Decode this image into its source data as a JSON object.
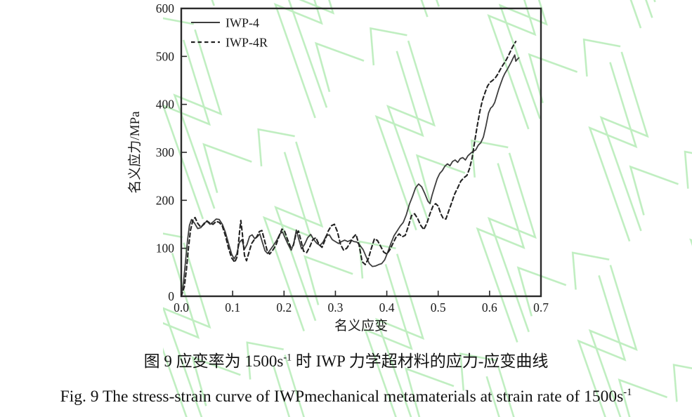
{
  "figure": {
    "caption_zh_prefix": "图 9 应变率为 1500s",
    "caption_zh_sup": "-1",
    "caption_zh_suffix": " 时 IWP 力学超材料的应力-应变曲线",
    "caption_en_prefix": "Fig. 9 The stress-strain curve of IWPmechanical metamaterials at strain rate of 1500s",
    "caption_en_sup": "-1"
  },
  "colors": {
    "background": "#ffffff",
    "axis": "#2a2a2a",
    "curve_solid": "#3d3d3d",
    "curve_dashed": "#222222",
    "text": "#1a1a1a",
    "watermark": "#bfeec0"
  },
  "chart_data": {
    "type": "line",
    "title": "",
    "xlabel": "名义应变",
    "ylabel": "名义应力/MPa",
    "xlim": [
      0.0,
      0.7
    ],
    "ylim": [
      0,
      600
    ],
    "xtick_values": [
      0.0,
      0.1,
      0.2,
      0.3,
      0.4,
      0.5,
      0.6,
      0.7
    ],
    "xtick_labels": [
      "0.0",
      "0.1",
      "0.2",
      "0.3",
      "0.4",
      "0.5",
      "0.6",
      "0.7"
    ],
    "ytick_values": [
      0,
      100,
      200,
      300,
      400,
      500,
      600
    ],
    "ytick_labels": [
      "0",
      "100",
      "200",
      "300",
      "400",
      "500",
      "600"
    ],
    "grid": false,
    "legend_position": "top-left",
    "series": [
      {
        "name": "IWP-4",
        "style": "solid",
        "points": [
          [
            0.0,
            0
          ],
          [
            0.004,
            25
          ],
          [
            0.008,
            70
          ],
          [
            0.012,
            115
          ],
          [
            0.016,
            148
          ],
          [
            0.02,
            160
          ],
          [
            0.026,
            152
          ],
          [
            0.032,
            141
          ],
          [
            0.038,
            143
          ],
          [
            0.044,
            152
          ],
          [
            0.05,
            156
          ],
          [
            0.056,
            150
          ],
          [
            0.062,
            155
          ],
          [
            0.068,
            161
          ],
          [
            0.074,
            160
          ],
          [
            0.08,
            150
          ],
          [
            0.086,
            133
          ],
          [
            0.092,
            110
          ],
          [
            0.098,
            88
          ],
          [
            0.103,
            78
          ],
          [
            0.108,
            88
          ],
          [
            0.113,
            112
          ],
          [
            0.118,
            118
          ],
          [
            0.123,
            98
          ],
          [
            0.128,
            108
          ],
          [
            0.133,
            125
          ],
          [
            0.138,
            128
          ],
          [
            0.143,
            120
          ],
          [
            0.148,
            124
          ],
          [
            0.153,
            130
          ],
          [
            0.158,
            112
          ],
          [
            0.163,
            95
          ],
          [
            0.168,
            89
          ],
          [
            0.174,
            98
          ],
          [
            0.18,
            107
          ],
          [
            0.186,
            117
          ],
          [
            0.192,
            130
          ],
          [
            0.197,
            134
          ],
          [
            0.202,
            122
          ],
          [
            0.208,
            108
          ],
          [
            0.214,
            96
          ],
          [
            0.219,
            110
          ],
          [
            0.224,
            138
          ],
          [
            0.229,
            118
          ],
          [
            0.234,
            99
          ],
          [
            0.24,
            108
          ],
          [
            0.246,
            122
          ],
          [
            0.252,
            129
          ],
          [
            0.258,
            118
          ],
          [
            0.264,
            110
          ],
          [
            0.27,
            106
          ],
          [
            0.276,
            113
          ],
          [
            0.282,
            126
          ],
          [
            0.288,
            128
          ],
          [
            0.294,
            118
          ],
          [
            0.3,
            114
          ],
          [
            0.306,
            110
          ],
          [
            0.312,
            114
          ],
          [
            0.318,
            117
          ],
          [
            0.324,
            114
          ],
          [
            0.33,
            117
          ],
          [
            0.336,
            114
          ],
          [
            0.342,
            113
          ],
          [
            0.348,
            106
          ],
          [
            0.354,
            97
          ],
          [
            0.36,
            82
          ],
          [
            0.366,
            68
          ],
          [
            0.372,
            62
          ],
          [
            0.378,
            63
          ],
          [
            0.384,
            66
          ],
          [
            0.39,
            68
          ],
          [
            0.396,
            76
          ],
          [
            0.402,
            92
          ],
          [
            0.408,
            110
          ],
          [
            0.414,
            126
          ],
          [
            0.42,
            136
          ],
          [
            0.426,
            146
          ],
          [
            0.432,
            154
          ],
          [
            0.438,
            170
          ],
          [
            0.444,
            192
          ],
          [
            0.45,
            208
          ],
          [
            0.456,
            226
          ],
          [
            0.462,
            234
          ],
          [
            0.468,
            228
          ],
          [
            0.474,
            214
          ],
          [
            0.48,
            198
          ],
          [
            0.484,
            193
          ],
          [
            0.488,
            210
          ],
          [
            0.493,
            228
          ],
          [
            0.498,
            245
          ],
          [
            0.503,
            256
          ],
          [
            0.508,
            262
          ],
          [
            0.513,
            271
          ],
          [
            0.518,
            276
          ],
          [
            0.523,
            272
          ],
          [
            0.528,
            281
          ],
          [
            0.533,
            284
          ],
          [
            0.538,
            279
          ],
          [
            0.543,
            287
          ],
          [
            0.548,
            289
          ],
          [
            0.553,
            284
          ],
          [
            0.558,
            293
          ],
          [
            0.563,
            298
          ],
          [
            0.568,
            302
          ],
          [
            0.573,
            305
          ],
          [
            0.578,
            315
          ],
          [
            0.583,
            320
          ],
          [
            0.588,
            332
          ],
          [
            0.593,
            355
          ],
          [
            0.598,
            382
          ],
          [
            0.602,
            392
          ],
          [
            0.606,
            396
          ],
          [
            0.61,
            404
          ],
          [
            0.614,
            418
          ],
          [
            0.618,
            432
          ],
          [
            0.622,
            444
          ],
          [
            0.626,
            456
          ],
          [
            0.63,
            465
          ],
          [
            0.634,
            472
          ],
          [
            0.638,
            480
          ],
          [
            0.642,
            488
          ],
          [
            0.646,
            497
          ],
          [
            0.649,
            503
          ],
          [
            0.651,
            490
          ],
          [
            0.654,
            494
          ],
          [
            0.657,
            497
          ]
        ]
      },
      {
        "name": "IWP-4R",
        "style": "dashed",
        "points": [
          [
            0.0,
            0
          ],
          [
            0.006,
            20
          ],
          [
            0.01,
            55
          ],
          [
            0.014,
            100
          ],
          [
            0.018,
            138
          ],
          [
            0.023,
            160
          ],
          [
            0.027,
            164
          ],
          [
            0.032,
            152
          ],
          [
            0.038,
            144
          ],
          [
            0.044,
            150
          ],
          [
            0.05,
            157
          ],
          [
            0.056,
            152
          ],
          [
            0.062,
            150
          ],
          [
            0.068,
            156
          ],
          [
            0.074,
            154
          ],
          [
            0.08,
            146
          ],
          [
            0.086,
            126
          ],
          [
            0.092,
            100
          ],
          [
            0.098,
            80
          ],
          [
            0.104,
            71
          ],
          [
            0.109,
            83
          ],
          [
            0.113,
            130
          ],
          [
            0.116,
            158
          ],
          [
            0.119,
            130
          ],
          [
            0.123,
            85
          ],
          [
            0.127,
            74
          ],
          [
            0.132,
            92
          ],
          [
            0.137,
            110
          ],
          [
            0.142,
            118
          ],
          [
            0.147,
            124
          ],
          [
            0.152,
            135
          ],
          [
            0.157,
            137
          ],
          [
            0.162,
            117
          ],
          [
            0.167,
            96
          ],
          [
            0.172,
            88
          ],
          [
            0.178,
            96
          ],
          [
            0.184,
            106
          ],
          [
            0.19,
            124
          ],
          [
            0.196,
            140
          ],
          [
            0.201,
            136
          ],
          [
            0.207,
            118
          ],
          [
            0.213,
            102
          ],
          [
            0.218,
            106
          ],
          [
            0.223,
            128
          ],
          [
            0.228,
            136
          ],
          [
            0.233,
            116
          ],
          [
            0.238,
            94
          ],
          [
            0.244,
            91
          ],
          [
            0.25,
            103
          ],
          [
            0.256,
            118
          ],
          [
            0.262,
            122
          ],
          [
            0.268,
            108
          ],
          [
            0.274,
            102
          ],
          [
            0.28,
            118
          ],
          [
            0.286,
            136
          ],
          [
            0.292,
            147
          ],
          [
            0.298,
            150
          ],
          [
            0.304,
            134
          ],
          [
            0.31,
            108
          ],
          [
            0.316,
            96
          ],
          [
            0.322,
            100
          ],
          [
            0.328,
            110
          ],
          [
            0.334,
            122
          ],
          [
            0.34,
            129
          ],
          [
            0.346,
            107
          ],
          [
            0.352,
            72
          ],
          [
            0.358,
            66
          ],
          [
            0.364,
            78
          ],
          [
            0.37,
            100
          ],
          [
            0.376,
            120
          ],
          [
            0.382,
            116
          ],
          [
            0.388,
            104
          ],
          [
            0.394,
            92
          ],
          [
            0.4,
            88
          ],
          [
            0.406,
            97
          ],
          [
            0.412,
            110
          ],
          [
            0.418,
            123
          ],
          [
            0.424,
            130
          ],
          [
            0.43,
            124
          ],
          [
            0.436,
            127
          ],
          [
            0.442,
            146
          ],
          [
            0.448,
            168
          ],
          [
            0.454,
            172
          ],
          [
            0.46,
            162
          ],
          [
            0.466,
            148
          ],
          [
            0.472,
            139
          ],
          [
            0.478,
            152
          ],
          [
            0.484,
            172
          ],
          [
            0.49,
            188
          ],
          [
            0.495,
            193
          ],
          [
            0.5,
            188
          ],
          [
            0.505,
            172
          ],
          [
            0.51,
            162
          ],
          [
            0.515,
            161
          ],
          [
            0.52,
            176
          ],
          [
            0.526,
            194
          ],
          [
            0.532,
            213
          ],
          [
            0.538,
            226
          ],
          [
            0.544,
            240
          ],
          [
            0.55,
            247
          ],
          [
            0.556,
            252
          ],
          [
            0.561,
            266
          ],
          [
            0.566,
            288
          ],
          [
            0.571,
            322
          ],
          [
            0.576,
            355
          ],
          [
            0.581,
            385
          ],
          [
            0.586,
            408
          ],
          [
            0.591,
            424
          ],
          [
            0.596,
            438
          ],
          [
            0.601,
            446
          ],
          [
            0.606,
            450
          ],
          [
            0.611,
            455
          ],
          [
            0.616,
            463
          ],
          [
            0.621,
            473
          ],
          [
            0.626,
            482
          ],
          [
            0.631,
            490
          ],
          [
            0.636,
            500
          ],
          [
            0.64,
            509
          ],
          [
            0.644,
            518
          ],
          [
            0.648,
            526
          ],
          [
            0.651,
            531
          ]
        ]
      }
    ]
  }
}
